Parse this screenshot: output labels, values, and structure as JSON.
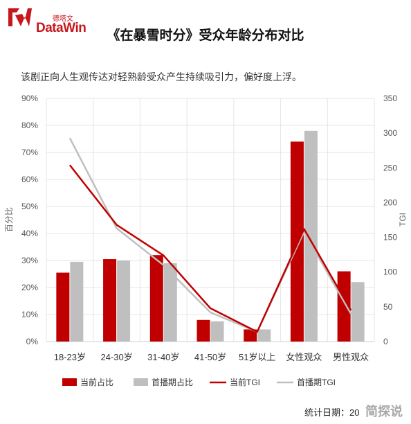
{
  "header": {
    "brand_cn": "德塔文",
    "brand_en": "DataWin",
    "title": "《在暴雪时分》受众年龄分布对比",
    "subtitle": "该剧正向人生观传达对轻熟龄受众产生持续吸引力，偏好度上浮。"
  },
  "footer": {
    "date_label": "统计日期：20",
    "watermark": "简探说"
  },
  "colors": {
    "current_bar": "#c00000",
    "prev_bar": "#bfbfbf",
    "current_line": "#c00000",
    "prev_line": "#bfbfbf"
  },
  "chart_data": {
    "type": "bar",
    "categories": [
      "18-23岁",
      "24-30岁",
      "31-40岁",
      "41-50岁",
      "51岁以上",
      "女性观众",
      "男性观众"
    ],
    "ylabel": "百分比",
    "y2label": "TGI",
    "ylim": [
      0,
      90
    ],
    "y2lim": [
      0,
      350
    ],
    "yticks": [
      "0%",
      "10%",
      "20%",
      "30%",
      "40%",
      "50%",
      "60%",
      "70%",
      "80%",
      "90%"
    ],
    "y2ticks": [
      "0",
      "50",
      "100",
      "150",
      "200",
      "250",
      "300",
      "350"
    ],
    "grid": true,
    "legend_position": "bottom",
    "series": [
      {
        "name": "当前占比",
        "kind": "bar",
        "axis": "left",
        "values": [
          25.5,
          30.5,
          32,
          8,
          4.5,
          74,
          26
        ]
      },
      {
        "name": "首播期占比",
        "kind": "bar",
        "axis": "left",
        "values": [
          29.5,
          30,
          29,
          7.5,
          4.5,
          78,
          22
        ]
      },
      {
        "name": "当前TGI",
        "kind": "line",
        "axis": "right",
        "values": [
          254,
          168,
          124,
          48,
          14,
          162,
          45
        ]
      },
      {
        "name": "首播期TGI",
        "kind": "line",
        "axis": "right",
        "values": [
          293,
          163,
          110,
          42,
          14,
          158,
          40
        ]
      }
    ]
  }
}
